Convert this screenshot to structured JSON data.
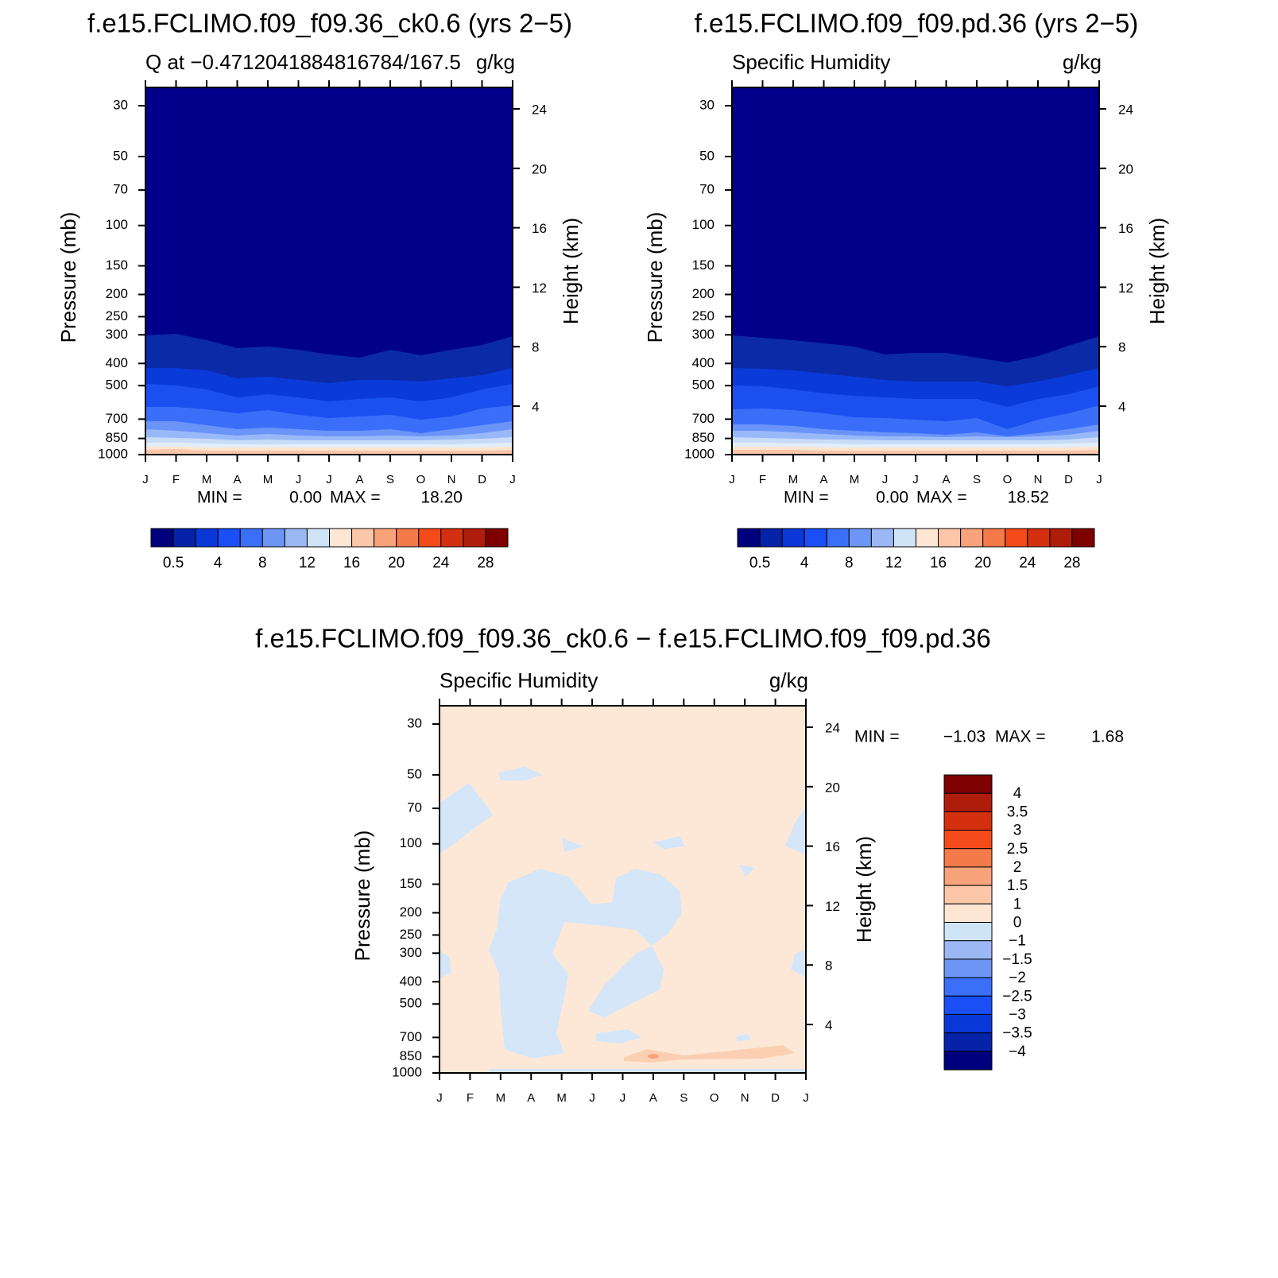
{
  "panels": [
    {
      "title": "f.e15.FCLIMO.f09_f09.36_ck0.6 (yrs 2−5)",
      "subtitle_left": "Q at −0.4712041884816784/167.5",
      "subtitle_right": "g/kg",
      "y_label": "Pressure (mb)",
      "y2_label": "Height (km)",
      "pressure_ticks": [
        30,
        50,
        70,
        100,
        150,
        200,
        250,
        300,
        400,
        500,
        700,
        850,
        1000
      ],
      "height_ticks": [
        24,
        20,
        16,
        12,
        8,
        4
      ],
      "months": [
        "J",
        "F",
        "M",
        "A",
        "M",
        "J",
        "J",
        "A",
        "S",
        "O",
        "N",
        "D",
        "J"
      ],
      "min_label": "MIN =",
      "min": "0.00",
      "max_label": "MAX =",
      "max": "18.20",
      "colorbar_labels": [
        "0.5",
        "4",
        "8",
        "12",
        "16",
        "20",
        "24",
        "28"
      ]
    },
    {
      "title": "f.e15.FCLIMO.f09_f09.pd.36 (yrs 2−5)",
      "subtitle_left": "Specific Humidity",
      "subtitle_right": "g/kg",
      "y_label": "Pressure (mb)",
      "y2_label": "Height (km)",
      "pressure_ticks": [
        30,
        50,
        70,
        100,
        150,
        200,
        250,
        300,
        400,
        500,
        700,
        850,
        1000
      ],
      "height_ticks": [
        24,
        20,
        16,
        12,
        8,
        4
      ],
      "months": [
        "J",
        "F",
        "M",
        "A",
        "M",
        "J",
        "J",
        "A",
        "S",
        "O",
        "N",
        "D",
        "J"
      ],
      "min_label": "MIN =",
      "min": "0.00",
      "max_label": "MAX =",
      "max": "18.52",
      "colorbar_labels": [
        "0.5",
        "4",
        "8",
        "12",
        "16",
        "20",
        "24",
        "28"
      ]
    },
    {
      "title": "f.e15.FCLIMO.f09_f09.36_ck0.6 − f.e15.FCLIMO.f09_f09.pd.36",
      "subtitle_left": "Specific Humidity",
      "subtitle_right": "g/kg",
      "y_label": "Pressure (mb)",
      "y2_label": "Height (km)",
      "pressure_ticks": [
        30,
        50,
        70,
        100,
        150,
        200,
        250,
        300,
        400,
        500,
        700,
        850,
        1000
      ],
      "height_ticks": [
        24,
        20,
        16,
        12,
        8,
        4
      ],
      "months": [
        "J",
        "F",
        "M",
        "A",
        "M",
        "J",
        "J",
        "A",
        "S",
        "O",
        "N",
        "D",
        "J"
      ],
      "min_label": "MIN =",
      "min": "−1.03",
      "max_label": "MAX =",
      "max": "1.68",
      "colorbar_labels": [
        "4",
        "3.5",
        "3",
        "2.5",
        "2",
        "1.5",
        "1",
        "0",
        "−1",
        "−1.5",
        "−2",
        "−2.5",
        "−3",
        "−3.5",
        "−4"
      ]
    }
  ],
  "colorbar_colors": [
    "#00007f",
    "#0522a8",
    "#0a37d8",
    "#1a4ff5",
    "#3a6ff8",
    "#6d95f5",
    "#9bb8f5",
    "#d0e4f8",
    "#fde6d4",
    "#fbc7a8",
    "#f8a37a",
    "#f57a4a",
    "#f54a1a",
    "#d43010",
    "#b01c0a",
    "#7f0000"
  ]
}
